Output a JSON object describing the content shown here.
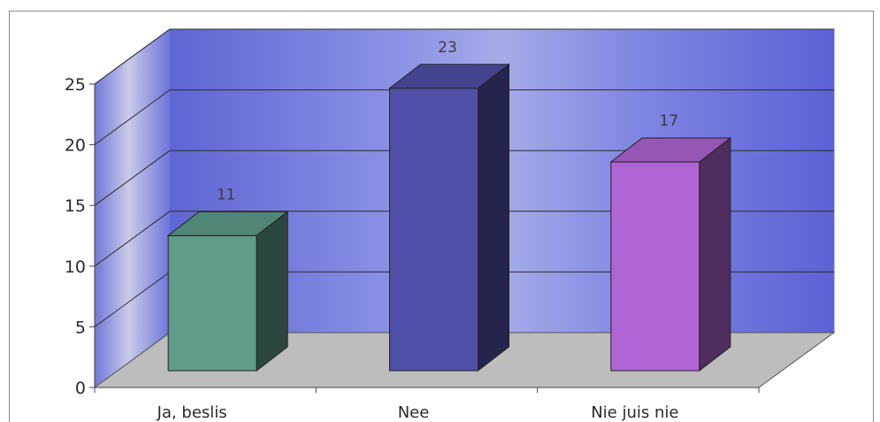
{
  "chart_data": {
    "type": "bar",
    "categories": [
      "Ja, beslis",
      "Nee",
      "Nie juis nie"
    ],
    "values": [
      11,
      23,
      17
    ],
    "title": "",
    "xlabel": "",
    "ylabel": "",
    "ylim": [
      0,
      25
    ],
    "yticks": [
      0,
      5,
      10,
      15,
      20,
      25
    ],
    "grid": true,
    "legend": "none",
    "bar_colors": [
      "#5f9c8a",
      "#5150a8",
      "#b065d4"
    ],
    "wall_color": "#6a6fd8",
    "floor_color": "#bdbdbd"
  }
}
